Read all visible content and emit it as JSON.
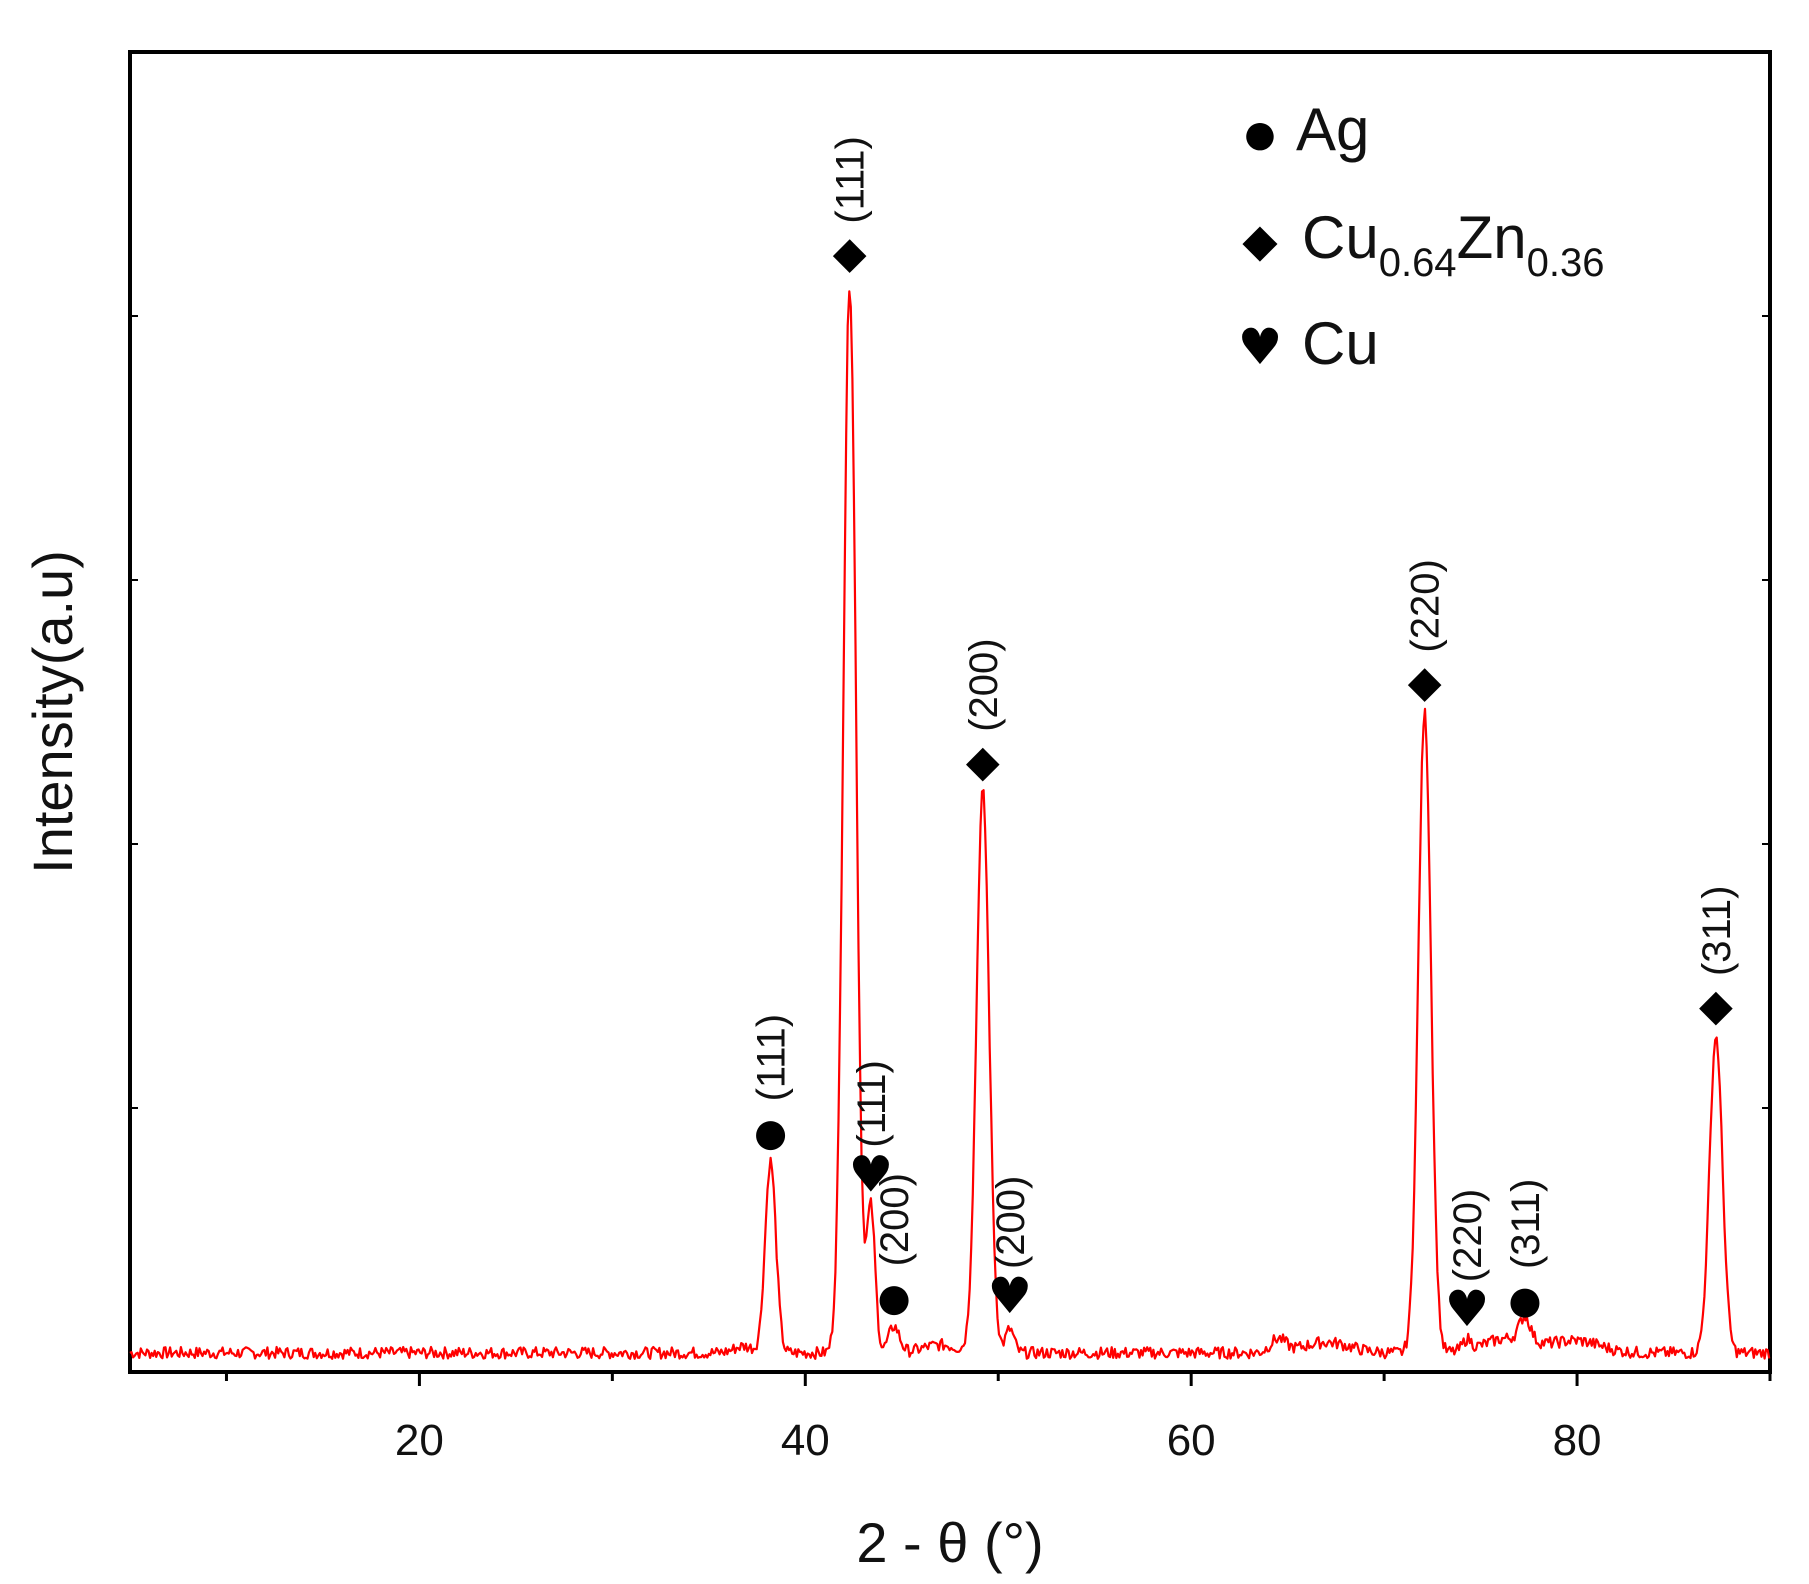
{
  "chart_data": {
    "type": "line",
    "xlabel": "2 - θ (°)",
    "ylabel": "Intensity(a.u)",
    "xlim": [
      5,
      90
    ],
    "ylim": [
      0,
      100
    ],
    "x_ticks": [
      20,
      40,
      60,
      80
    ],
    "x_tick_labels": [
      "20",
      "40",
      "60",
      "80"
    ],
    "grid": false,
    "legend_position": "top-right",
    "series_color": "#ff0000",
    "legend": [
      {
        "marker": "●",
        "marker_name": "circle",
        "label": "Ag",
        "subscripts": []
      },
      {
        "marker": "◆",
        "marker_name": "diamond",
        "label": "Cu",
        "subscripts": [
          {
            "text": "0.64"
          },
          {
            "text": "Zn"
          },
          {
            "text": "0.36"
          }
        ]
      },
      {
        "marker": "♥",
        "marker_name": "heart",
        "label": "Cu",
        "subscripts": []
      }
    ],
    "legend_parts": {
      "cuzn_cu": "Cu",
      "cuzn_sub1": "0.64",
      "cuzn_zn": "Zn",
      "cuzn_sub2": "0.36"
    },
    "baseline": 1,
    "peaks": [
      {
        "x": 38.2,
        "y": 15.5,
        "phase": "Ag",
        "marker": "●",
        "hkl": "(111)"
      },
      {
        "x": 42.3,
        "y": 82.0,
        "phase": "Cu0.64Zn0.36",
        "marker": "◆",
        "hkl": "(111)"
      },
      {
        "x": 43.4,
        "y": 12.0,
        "phase": "Cu",
        "marker": "♥",
        "hkl": "(111)"
      },
      {
        "x": 44.6,
        "y": 3.0,
        "phase": "Ag",
        "marker": "●",
        "hkl": "(200)"
      },
      {
        "x": 49.2,
        "y": 43.5,
        "phase": "Cu0.64Zn0.36",
        "marker": "◆",
        "hkl": "(200)"
      },
      {
        "x": 50.6,
        "y": 2.8,
        "phase": "Cu",
        "marker": "♥",
        "hkl": "(200)"
      },
      {
        "x": 72.1,
        "y": 49.5,
        "phase": "Cu0.64Zn0.36",
        "marker": "◆",
        "hkl": "(220)"
      },
      {
        "x": 74.3,
        "y": 1.8,
        "phase": "Cu",
        "marker": "♥",
        "hkl": "(220)"
      },
      {
        "x": 77.3,
        "y": 2.8,
        "phase": "Ag",
        "marker": "●",
        "hkl": "(311)"
      },
      {
        "x": 87.2,
        "y": 25.0,
        "phase": "Cu0.64Zn0.36",
        "marker": "◆",
        "hkl": "(311)"
      }
    ]
  }
}
